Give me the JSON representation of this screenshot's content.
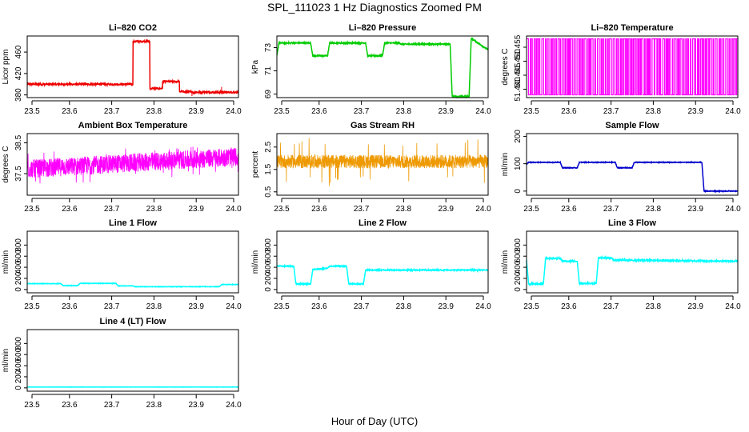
{
  "title": "SPL_111023  1 Hz Diagnostics Zoomed PM",
  "xlabel": "Hour of Day (UTC)",
  "chart_data": [
    {
      "id": "co2",
      "type": "line",
      "title": "Li–820 CO2",
      "ylabel": "Licor ppm",
      "color": "#ee0000",
      "xlim": [
        23.5,
        24.0
      ],
      "ylim": [
        375,
        490
      ],
      "xticks": [
        "23.5",
        "23.6",
        "23.7",
        "23.8",
        "23.9",
        "24.0"
      ],
      "yticks": [
        {
          "v": 380,
          "t": "380"
        },
        {
          "v": 420,
          "t": "420"
        },
        {
          "v": 460,
          "t": "460"
        }
      ],
      "series": [
        {
          "name": "CO2",
          "segments": [
            [
              23.5,
              400
            ],
            [
              23.75,
              400
            ],
            [
              23.75,
              480
            ],
            [
              23.79,
              480
            ],
            [
              23.79,
              392
            ],
            [
              23.82,
              392
            ],
            [
              23.82,
              405
            ],
            [
              23.86,
              405
            ],
            [
              23.86,
              386
            ],
            [
              23.89,
              386
            ],
            [
              23.89,
              385
            ],
            [
              24.0,
              385
            ]
          ],
          "noise": 1.5,
          "spikes": [
            [
              23.96,
              395
            ],
            [
              23.89,
              378
            ]
          ]
        }
      ]
    },
    {
      "id": "pressure",
      "type": "line",
      "title": "Li–820 Pressure",
      "ylabel": "kPa",
      "color": "#00cc00",
      "xlim": [
        23.5,
        24.0
      ],
      "ylim": [
        68.7,
        74.0
      ],
      "xticks": [
        "23.5",
        "23.6",
        "23.7",
        "23.8",
        "23.9",
        "24.0"
      ],
      "yticks": [
        {
          "v": 69,
          "t": "69"
        },
        {
          "v": 71,
          "t": "71"
        },
        {
          "v": 73,
          "t": "73"
        }
      ],
      "series": [
        {
          "name": "Pressure",
          "segments": [
            [
              23.5,
              72.3
            ],
            [
              23.505,
              73.4
            ],
            [
              23.58,
              73.4
            ],
            [
              23.585,
              72.3
            ],
            [
              23.62,
              72.3
            ],
            [
              23.625,
              73.4
            ],
            [
              23.71,
              73.4
            ],
            [
              23.715,
              72.3
            ],
            [
              23.75,
              72.3
            ],
            [
              23.755,
              73.4
            ],
            [
              23.79,
              73.4
            ],
            [
              23.795,
              73.3
            ],
            [
              23.91,
              73.3
            ],
            [
              23.915,
              68.8
            ],
            [
              23.955,
              68.8
            ],
            [
              23.96,
              73.8
            ],
            [
              24.0,
              72.8
            ]
          ],
          "noise": 0.05
        }
      ]
    },
    {
      "id": "licor_temp",
      "type": "square",
      "title": "Li–820 Temperature",
      "ylabel": "degrees C",
      "color": "#ff00ff",
      "xlim": [
        23.5,
        24.0
      ],
      "ylim": [
        51.437,
        51.459
      ],
      "xticks": [
        "23.5",
        "23.6",
        "23.7",
        "23.8",
        "23.9",
        "24.0"
      ],
      "yticks": [
        {
          "v": 51.44,
          "t": "51.440"
        },
        {
          "v": 51.445,
          "t": "51.445"
        },
        {
          "v": 51.45,
          "t": "51.450"
        },
        {
          "v": 51.455,
          "t": "51.455"
        }
      ],
      "series": [
        {
          "name": "Temperature",
          "low": 51.438,
          "high": 51.458
        }
      ]
    },
    {
      "id": "ambient_box",
      "type": "band",
      "title": "Ambient Box Temperature",
      "ylabel": "degrees C",
      "color": "#ff00ff",
      "xlim": [
        23.5,
        24.0
      ],
      "ylim": [
        36.8,
        38.8
      ],
      "xticks": [
        "23.5",
        "23.6",
        "23.7",
        "23.8",
        "23.9",
        "24.0"
      ],
      "yticks": [
        {
          "v": 37.5,
          "t": "37.5"
        },
        {
          "v": 38.5,
          "t": "38.5"
        }
      ],
      "series": [
        {
          "name": "Box Temp",
          "center": [
            [
              23.5,
              37.65
            ],
            [
              24.0,
              38.05
            ]
          ],
          "amp": 0.3,
          "spike": 0.55
        }
      ]
    },
    {
      "id": "rh",
      "type": "band",
      "title": "Gas Stream RH",
      "ylabel": "percent",
      "color": "#ee9900",
      "xlim": [
        23.5,
        24.0
      ],
      "ylim": [
        0.35,
        3.1
      ],
      "xticks": [
        "23.5",
        "23.6",
        "23.7",
        "23.8",
        "23.9",
        "24.0"
      ],
      "yticks": [
        {
          "v": 0.5,
          "t": "0.5"
        },
        {
          "v": 1.5,
          "t": "1.5"
        },
        {
          "v": 2.5,
          "t": "2.5"
        }
      ],
      "series": [
        {
          "name": "RH",
          "center": [
            [
              23.5,
              1.85
            ],
            [
              24.0,
              1.85
            ]
          ],
          "amp": 0.3,
          "spike": 1.1
        }
      ]
    },
    {
      "id": "sample_flow",
      "type": "line",
      "title": "Sample Flow",
      "ylabel": "ml/min",
      "color": "#0000cc",
      "xlim": [
        23.5,
        24.0
      ],
      "ylim": [
        -15,
        210
      ],
      "xticks": [
        "23.5",
        "23.6",
        "23.7",
        "23.8",
        "23.9",
        "24.0"
      ],
      "yticks": [
        {
          "v": 0,
          "t": "0"
        },
        {
          "v": 100,
          "t": "100"
        },
        {
          "v": 200,
          "t": "200"
        }
      ],
      "series": [
        {
          "name": "Flow",
          "segments": [
            [
              23.5,
              98
            ],
            [
              23.505,
              105
            ],
            [
              23.58,
              105
            ],
            [
              23.585,
              85
            ],
            [
              23.62,
              85
            ],
            [
              23.625,
              105
            ],
            [
              23.71,
              105
            ],
            [
              23.715,
              85
            ],
            [
              23.75,
              85
            ],
            [
              23.755,
              105
            ],
            [
              23.915,
              105
            ],
            [
              23.92,
              0
            ],
            [
              24.0,
              0
            ]
          ],
          "noise": 1.2
        }
      ]
    },
    {
      "id": "line1",
      "type": "line",
      "title": "Line 1 Flow",
      "ylabel": "ml/min",
      "color": "#00ffff",
      "xlim": [
        23.5,
        24.0
      ],
      "ylim": [
        -60,
        1050
      ],
      "xticks": [
        "23.5",
        "23.6",
        "23.7",
        "23.8",
        "23.9",
        "24.0"
      ],
      "yticks": [
        {
          "v": 0,
          "t": "0"
        },
        {
          "v": 200,
          "t": "200"
        },
        {
          "v": 400,
          "t": "400"
        },
        {
          "v": 600,
          "t": "600"
        },
        {
          "v": 800,
          "t": "800"
        }
      ],
      "series": [
        {
          "name": "Line 1",
          "segments": [
            [
              23.5,
              105
            ],
            [
              23.58,
              105
            ],
            [
              23.585,
              70
            ],
            [
              23.62,
              70
            ],
            [
              23.625,
              110
            ],
            [
              23.71,
              110
            ],
            [
              23.715,
              65
            ],
            [
              23.75,
              65
            ],
            [
              23.755,
              50
            ],
            [
              23.955,
              50
            ],
            [
              23.96,
              90
            ],
            [
              24.0,
              90
            ]
          ],
          "noise": 4
        }
      ]
    },
    {
      "id": "line2",
      "type": "line",
      "title": "Line 2 Flow",
      "ylabel": "ml/min",
      "color": "#00ffff",
      "xlim": [
        23.5,
        24.0
      ],
      "ylim": [
        -60,
        1050
      ],
      "xticks": [
        "23.5",
        "23.6",
        "23.7",
        "23.8",
        "23.9",
        "24.0"
      ],
      "yticks": [
        {
          "v": 0,
          "t": "0"
        },
        {
          "v": 200,
          "t": "200"
        },
        {
          "v": 400,
          "t": "400"
        },
        {
          "v": 600,
          "t": "600"
        },
        {
          "v": 800,
          "t": "800"
        }
      ],
      "series": [
        {
          "name": "Line 2",
          "segments": [
            [
              23.5,
              420
            ],
            [
              23.54,
              420
            ],
            [
              23.545,
              100
            ],
            [
              23.58,
              100
            ],
            [
              23.585,
              360
            ],
            [
              23.62,
              380
            ],
            [
              23.625,
              420
            ],
            [
              23.665,
              420
            ],
            [
              23.67,
              100
            ],
            [
              23.705,
              100
            ],
            [
              23.71,
              350
            ],
            [
              24.0,
              350
            ]
          ],
          "noise": 9
        }
      ]
    },
    {
      "id": "line3",
      "type": "line",
      "title": "Line 3 Flow",
      "ylabel": "ml/min",
      "color": "#00ffff",
      "xlim": [
        23.5,
        24.0
      ],
      "ylim": [
        -60,
        1050
      ],
      "xticks": [
        "23.5",
        "23.6",
        "23.7",
        "23.8",
        "23.9",
        "24.0"
      ],
      "yticks": [
        {
          "v": 0,
          "t": "0"
        },
        {
          "v": 200,
          "t": "200"
        },
        {
          "v": 400,
          "t": "400"
        },
        {
          "v": 600,
          "t": "600"
        },
        {
          "v": 800,
          "t": "800"
        }
      ],
      "series": [
        {
          "name": "Line 3",
          "segments": [
            [
              23.5,
              520
            ],
            [
              23.505,
              100
            ],
            [
              23.54,
              100
            ],
            [
              23.545,
              560
            ],
            [
              23.58,
              560
            ],
            [
              23.585,
              510
            ],
            [
              23.62,
              510
            ],
            [
              23.625,
              110
            ],
            [
              23.665,
              110
            ],
            [
              23.67,
              570
            ],
            [
              23.7,
              570
            ],
            [
              23.705,
              530
            ],
            [
              24.0,
              510
            ]
          ],
          "noise": 12
        }
      ]
    },
    {
      "id": "line4",
      "type": "line",
      "title": "Line 4 (LT) Flow",
      "ylabel": "ml/min",
      "color": "#00ffff",
      "xlim": [
        23.5,
        24.0
      ],
      "ylim": [
        -60,
        1050
      ],
      "xticks": [
        "23.5",
        "23.6",
        "23.7",
        "23.8",
        "23.9",
        "24.0"
      ],
      "yticks": [
        {
          "v": 0,
          "t": "0"
        },
        {
          "v": 200,
          "t": "200"
        },
        {
          "v": 400,
          "t": "400"
        },
        {
          "v": 600,
          "t": "600"
        },
        {
          "v": 800,
          "t": "800"
        }
      ],
      "series": [
        {
          "name": "Line 4",
          "segments": [
            [
              23.5,
              15
            ],
            [
              24.0,
              15
            ]
          ],
          "noise": 2
        }
      ]
    }
  ]
}
